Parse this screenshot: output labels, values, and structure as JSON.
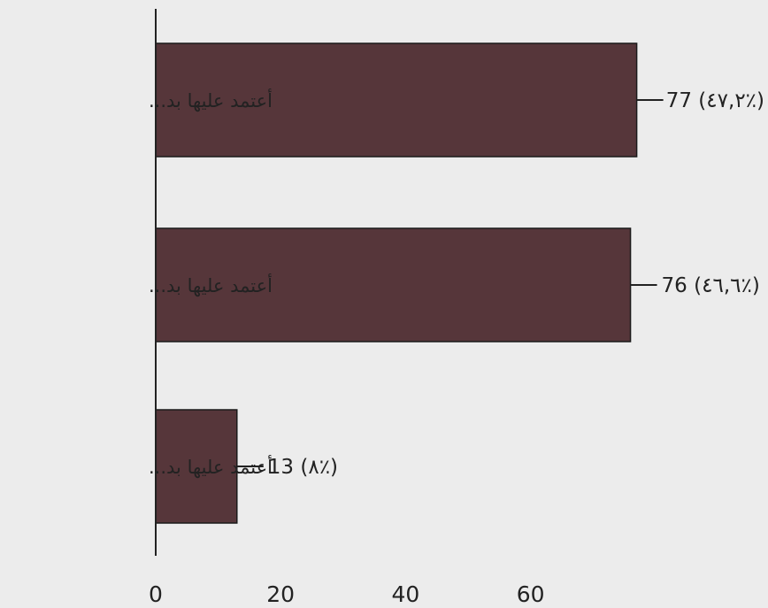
{
  "chart_data": {
    "type": "bar",
    "orientation": "horizontal",
    "categories": [
      "أعتمد عليها بد...",
      "أعتمد عليها بد...",
      "أعتمد عليها بد..."
    ],
    "values": [
      77,
      76,
      13
    ],
    "value_labels": [
      "77 (٤٧,٢٪)",
      "76 (٤٦,٦٪)",
      "13 (٨٪)"
    ],
    "x_ticks": [
      "0",
      "20",
      "40",
      "60"
    ],
    "xlim": [
      0,
      80
    ],
    "grid": false,
    "colors": {
      "bar": "#56363a",
      "background": "#ececec",
      "axis": "#222222"
    }
  }
}
